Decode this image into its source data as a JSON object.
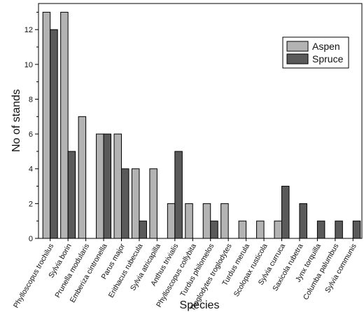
{
  "chart_data": {
    "type": "bar",
    "title": "",
    "xlabel": "Species",
    "ylabel": "No of stands",
    "ylim": [
      0,
      13.5
    ],
    "yticks": [
      0,
      2,
      4,
      6,
      8,
      10,
      12
    ],
    "legend_position": "top-right",
    "categories": [
      "Phylloscopus trochilus",
      "Sylvia borin",
      "Prunella modularis",
      "Emberiza cintronella",
      "Parus major",
      "Erithacus rubecula",
      "Sylvia atricapilla",
      "Anthus trivialis",
      "Phylloscopus collybita",
      "Turdus philomelos",
      "Troglodytes troglodytes",
      "Turdus merula",
      "Scolopax rusticola",
      "Sylvia curruca",
      "Saxicola rubetra",
      "Jynx torquilla",
      "Columba palumbus",
      "Sylvia communis"
    ],
    "series": [
      {
        "name": "Aspen",
        "color": "#b3b3b3",
        "values": [
          13,
          13,
          7,
          6,
          6,
          4,
          4,
          2,
          2,
          2,
          2,
          1,
          1,
          1,
          0,
          0,
          0,
          0
        ]
      },
      {
        "name": "Spruce",
        "color": "#5a5a5a",
        "values": [
          12,
          5,
          0,
          6,
          4,
          1,
          0,
          5,
          0,
          1,
          0,
          0,
          0,
          3,
          2,
          1,
          1,
          1
        ]
      }
    ]
  }
}
